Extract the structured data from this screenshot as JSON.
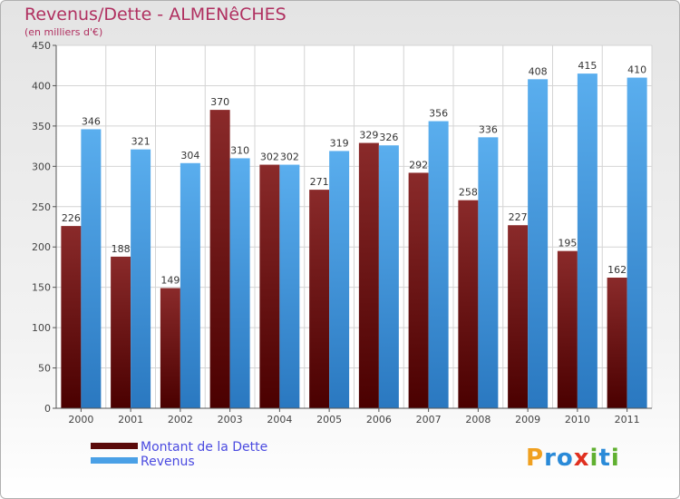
{
  "chart_data": {
    "type": "bar",
    "title": "Revenus/Dette - ALMENêCHES",
    "subtitle": "(en milliers d'€)",
    "categories": [
      "2000",
      "2001",
      "2002",
      "2003",
      "2004",
      "2005",
      "2006",
      "2007",
      "2008",
      "2009",
      "2010",
      "2011"
    ],
    "series": [
      {
        "name": "Montant de la Dette",
        "values": [
          226,
          188,
          149,
          370,
          302,
          271,
          329,
          292,
          258,
          227,
          195,
          162
        ],
        "color": "#7a1a1a"
      },
      {
        "name": "Revenus",
        "values": [
          346,
          321,
          304,
          310,
          302,
          319,
          326,
          356,
          336,
          408,
          415,
          410
        ],
        "color": "#4aa0e6"
      }
    ],
    "ylim": [
      0,
      450
    ],
    "yticks": [
      0,
      50,
      100,
      150,
      200,
      250,
      300,
      350,
      400,
      450
    ],
    "grid": true,
    "legend": "bottom-left"
  },
  "logo": {
    "letters": [
      "P",
      "r",
      "o",
      "x",
      "i",
      "t",
      "i"
    ],
    "colors": [
      "#f0a020",
      "#2a8ad8",
      "#2a8ad8",
      "#e03020",
      "#60b030",
      "#2a8ad8",
      "#60b030"
    ]
  }
}
